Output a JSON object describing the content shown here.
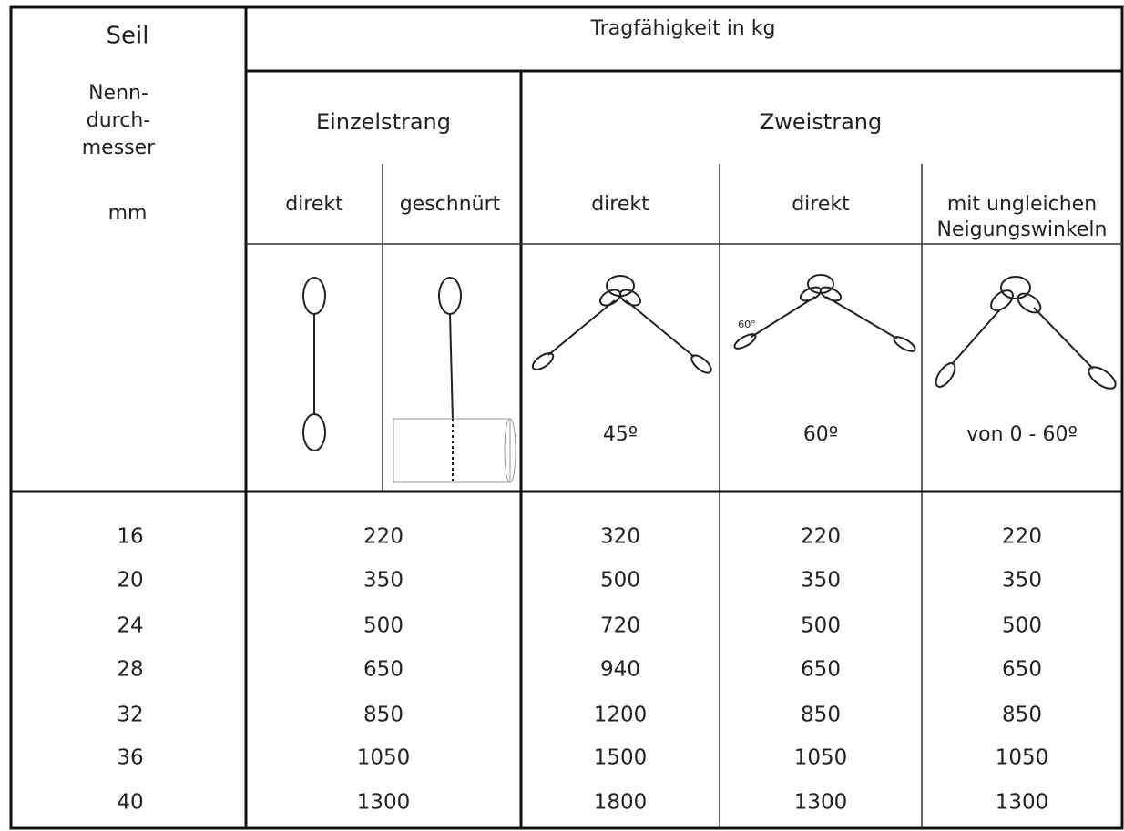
{
  "header": {
    "rope": "Seil",
    "diameter": [
      "Nenn-",
      "durch-",
      "messer"
    ],
    "unit": "mm",
    "capacity": "Tragfähigkeit in kg",
    "single": "Einzelstrang",
    "double": "Zweistrang",
    "columns": [
      "direkt",
      "geschnürt",
      "direkt",
      "direkt",
      [
        "mit ungleichen",
        "Neigungswinkeln"
      ]
    ],
    "angles": [
      "45º",
      "60º",
      "von 0 - 60º"
    ],
    "figure_label": "60°"
  },
  "table": {
    "rows": [
      [
        16,
        220,
        320,
        220,
        220
      ],
      [
        20,
        350,
        500,
        350,
        350
      ],
      [
        24,
        500,
        720,
        500,
        500
      ],
      [
        28,
        650,
        940,
        650,
        650
      ],
      [
        32,
        850,
        1200,
        850,
        850
      ],
      [
        36,
        1050,
        1500,
        1050,
        1050
      ],
      [
        40,
        1300,
        1800,
        1300,
        1300
      ]
    ]
  }
}
